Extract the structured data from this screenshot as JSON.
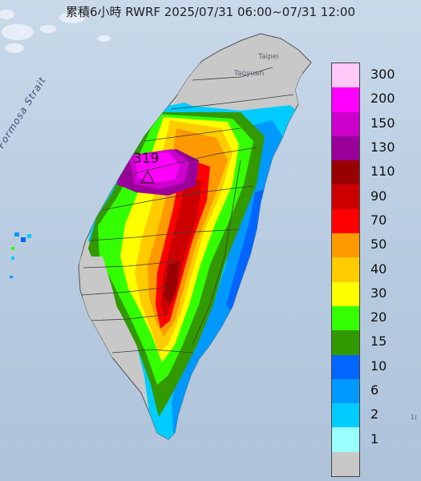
{
  "title": "累積6小時 RWRF 2025/07/31 06:00~07/31 12:00",
  "labels": {
    "strait": "Formosa Strait",
    "taipei": "Taipei",
    "taoyuan": "Taoyuan",
    "max_value": "319",
    "edge_mark": "1("
  },
  "legend": {
    "entries": [
      {
        "label": "300",
        "color": "#ffc8f6"
      },
      {
        "label": "200",
        "color": "#ff00ff"
      },
      {
        "label": "150",
        "color": "#cc00cc"
      },
      {
        "label": "130",
        "color": "#990099"
      },
      {
        "label": "110",
        "color": "#990000"
      },
      {
        "label": "90",
        "color": "#cc0000"
      },
      {
        "label": "70",
        "color": "#ff0000"
      },
      {
        "label": "50",
        "color": "#ff9900"
      },
      {
        "label": "40",
        "color": "#ffcc00"
      },
      {
        "label": "30",
        "color": "#ffff00"
      },
      {
        "label": "20",
        "color": "#33ff00"
      },
      {
        "label": "15",
        "color": "#339900"
      },
      {
        "label": "10",
        "color": "#0066ff"
      },
      {
        "label": "6",
        "color": "#0099ff"
      },
      {
        "label": "2",
        "color": "#00ccff"
      },
      {
        "label": "1",
        "color": "#99ffff"
      },
      {
        "label": "",
        "color": "#c8c8c8"
      }
    ]
  }
}
